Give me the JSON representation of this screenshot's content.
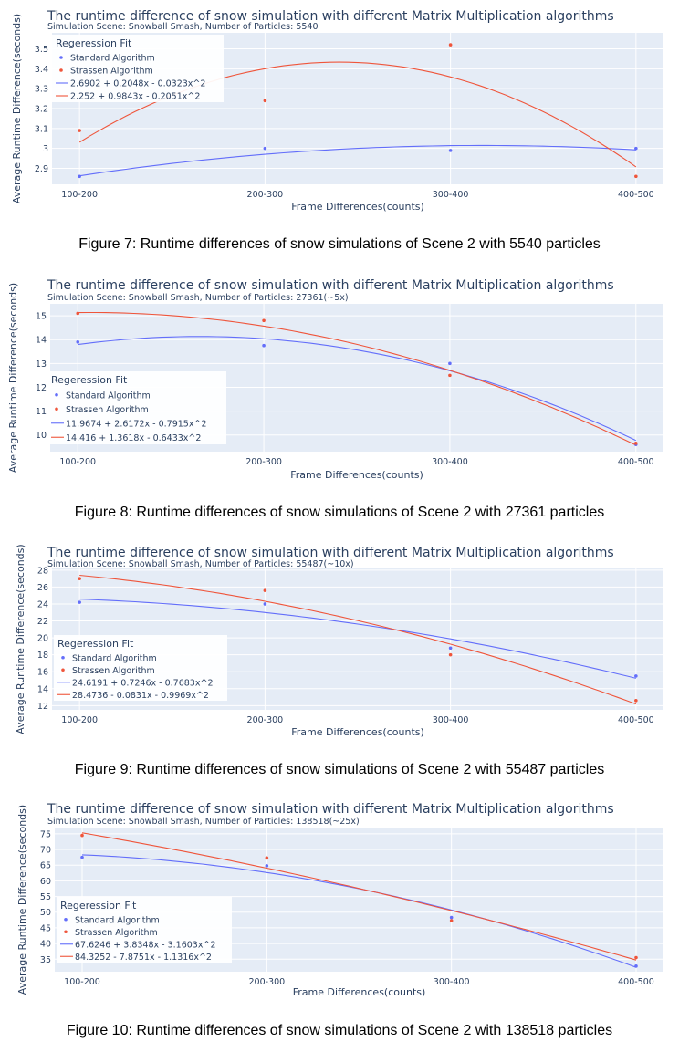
{
  "chart_data": [
    {
      "type": "scatter",
      "title": "The runtime difference of snow simulation with different Matrix Multiplication algorithms",
      "subtitle": "Simulation Scene: Snowball Smash, Number of Particles: 5540",
      "xlabel": "Frame Differences(counts)",
      "ylabel": "Average Runtime Difference(seconds)",
      "categories": [
        "100-200",
        "200-300",
        "300-400",
        "400-500"
      ],
      "ylim": [
        2.82,
        3.58
      ],
      "yticks": [
        2.9,
        3,
        3.1,
        3.2,
        3.3,
        3.4,
        3.5
      ],
      "yticklabels": [
        "2.9",
        "3",
        "3.1",
        "3.2",
        "3.3",
        "3.4",
        "3.5"
      ],
      "legend_title": "Regeression Fit",
      "legend_position": "top-left",
      "series": [
        {
          "name": "Standard Algorithm",
          "values": [
            2.86,
            3.0,
            2.99,
            3.0
          ],
          "color": "#636efa"
        },
        {
          "name": "Strassen Algorithm",
          "values": [
            3.09,
            3.24,
            3.52,
            2.86
          ],
          "color": "#ef553b"
        }
      ],
      "fits": [
        {
          "name": "2.6902 + 0.2048x - 0.0323x^2",
          "coef": [
            2.6902,
            0.2048,
            -0.0323
          ],
          "color": "#636efa"
        },
        {
          "name": "2.252 + 0.9843x - 0.2051x^2",
          "coef": [
            2.252,
            0.9843,
            -0.2051
          ],
          "color": "#ef553b"
        }
      ],
      "caption": "Figure 7: Runtime differences of snow simulations of Scene 2 with 5540 particles"
    },
    {
      "type": "scatter",
      "title": "The runtime difference of snow simulation with different Matrix Multiplication algorithms",
      "subtitle": "Simulation Scene: Snowball Smash, Number of Particles: 27361(~5x)",
      "xlabel": "Frame Differences(counts)",
      "ylabel": "Average Runtime Difference(seconds)",
      "categories": [
        "100-200",
        "200-300",
        "300-400",
        "400-500"
      ],
      "ylim": [
        9.3,
        15.5
      ],
      "yticks": [
        10,
        11,
        12,
        13,
        14,
        15
      ],
      "yticklabels": [
        "10",
        "11",
        "12",
        "13",
        "14",
        "15"
      ],
      "legend_title": "Regeression Fit",
      "legend_position": "bottom-left",
      "series": [
        {
          "name": "Standard Algorithm",
          "values": [
            13.9,
            13.75,
            13.0,
            9.6
          ],
          "color": "#636efa"
        },
        {
          "name": "Strassen Algorithm",
          "values": [
            15.1,
            14.8,
            12.5,
            9.65
          ],
          "color": "#ef553b"
        }
      ],
      "fits": [
        {
          "name": "11.9674 + 2.6172x - 0.7915x^2",
          "coef": [
            11.9674,
            2.6172,
            -0.7915
          ],
          "color": "#636efa"
        },
        {
          "name": "14.416 + 1.3618x - 0.6433x^2",
          "coef": [
            14.416,
            1.3618,
            -0.6433
          ],
          "color": "#ef553b"
        }
      ],
      "caption": "Figure 8: Runtime differences of snow simulations of Scene 2 with 27361 particles"
    },
    {
      "type": "scatter",
      "title": "The runtime difference of snow simulation with different Matrix Multiplication algorithms",
      "subtitle": "Simulation Scene: Snowball Smash, Number of Particles: 55487(~10x)",
      "xlabel": "Frame Differences(counts)",
      "ylabel": "Average Runtime Difference(seconds)",
      "categories": [
        "100-200",
        "200-300",
        "300-400",
        "400-500"
      ],
      "ylim": [
        11.5,
        28.2
      ],
      "yticks": [
        12,
        14,
        16,
        18,
        20,
        22,
        24,
        26,
        28
      ],
      "yticklabels": [
        "12",
        "14",
        "16",
        "18",
        "20",
        "22",
        "24",
        "26",
        "28"
      ],
      "legend_title": "Regeression Fit",
      "legend_position": "bottom-left",
      "series": [
        {
          "name": "Standard Algorithm",
          "values": [
            24.2,
            24.0,
            18.8,
            15.5
          ],
          "color": "#636efa"
        },
        {
          "name": "Strassen Algorithm",
          "values": [
            27.0,
            25.6,
            18.0,
            12.6
          ],
          "color": "#ef553b"
        }
      ],
      "fits": [
        {
          "name": "24.6191 + 0.7246x - 0.7683x^2",
          "coef": [
            24.6191,
            0.7246,
            -0.7683
          ],
          "color": "#636efa"
        },
        {
          "name": "28.4736 - 0.0831x - 0.9969x^2",
          "coef": [
            28.4736,
            -0.0831,
            -0.9969
          ],
          "color": "#ef553b"
        }
      ],
      "caption": "Figure 9: Runtime differences of snow simulations of Scene 2 with 55487 particles"
    },
    {
      "type": "scatter",
      "title": "The runtime difference of snow simulation with different Matrix Multiplication algorithms",
      "subtitle": "Simulation Scene: Snowball Smash, Number of Particles: 138518(~25x)",
      "xlabel": "Frame Differences(counts)",
      "ylabel": "Average Runtime Difference(seconds)",
      "categories": [
        "100-200",
        "200-300",
        "300-400",
        "400-500"
      ],
      "ylim": [
        31,
        77
      ],
      "yticks": [
        35,
        40,
        45,
        50,
        55,
        60,
        65,
        70,
        75
      ],
      "yticklabels": [
        "35",
        "40",
        "45",
        "50",
        "55",
        "60",
        "65",
        "70",
        "75"
      ],
      "legend_title": "Regeression Fit",
      "legend_position": "bottom-left",
      "series": [
        {
          "name": "Standard Algorithm",
          "values": [
            67.5,
            64.8,
            48.3,
            32.8
          ],
          "color": "#636efa"
        },
        {
          "name": "Strassen Algorithm",
          "values": [
            74.5,
            67.3,
            47.3,
            35.5
          ],
          "color": "#ef553b"
        }
      ],
      "fits": [
        {
          "name": "67.6246 + 3.8348x - 3.1603x^2",
          "coef": [
            67.6246,
            3.8348,
            -3.1603
          ],
          "color": "#636efa"
        },
        {
          "name": "84.3252 - 7.8751x - 1.1316x^2",
          "coef": [
            84.3252,
            -7.8751,
            -1.1316
          ],
          "color": "#ef553b"
        }
      ],
      "caption": "Figure 10: Runtime differences of snow simulations of Scene 2 with 138518 particles"
    }
  ]
}
